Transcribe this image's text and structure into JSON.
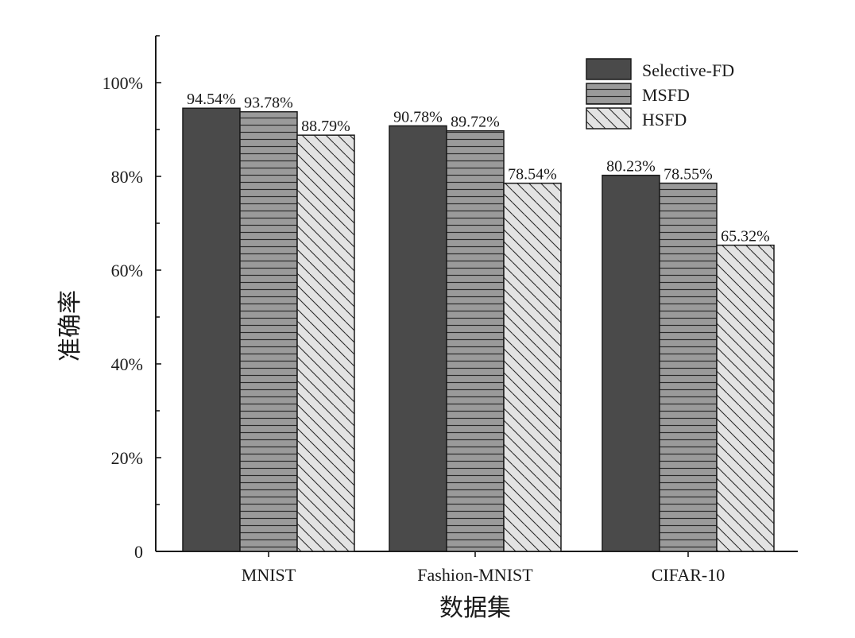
{
  "chart_data": {
    "type": "bar",
    "categories": [
      "MNIST",
      "Fashion-MNIST",
      "CIFAR-10"
    ],
    "series": [
      {
        "name": "Selective-FD",
        "values": [
          94.54,
          90.78,
          80.23
        ],
        "labels": [
          "94.54%",
          "90.78%",
          "80.23%"
        ],
        "color": "#4a4a4a",
        "pattern": "solid"
      },
      {
        "name": "MSFD",
        "values": [
          93.78,
          89.72,
          78.55
        ],
        "labels": [
          "93.78%",
          "89.72%",
          "78.55%"
        ],
        "color": "#9a9a9a",
        "pattern": "horizontal-lines"
      },
      {
        "name": "HSFD",
        "values": [
          88.79,
          78.54,
          65.32
        ],
        "labels": [
          "88.79%",
          "78.54%",
          "65.32%"
        ],
        "color": "#e3e3e3",
        "pattern": "diagonal-lines"
      }
    ],
    "xlabel": "数据集",
    "ylabel": "准确率",
    "ylim": [
      0,
      100
    ],
    "yticks": [
      0,
      20,
      40,
      60,
      80,
      100
    ],
    "ytick_labels": [
      "0",
      "20%",
      "40%",
      "60%",
      "80%",
      "100%"
    ],
    "grid": false,
    "legend_position": "top-right"
  }
}
